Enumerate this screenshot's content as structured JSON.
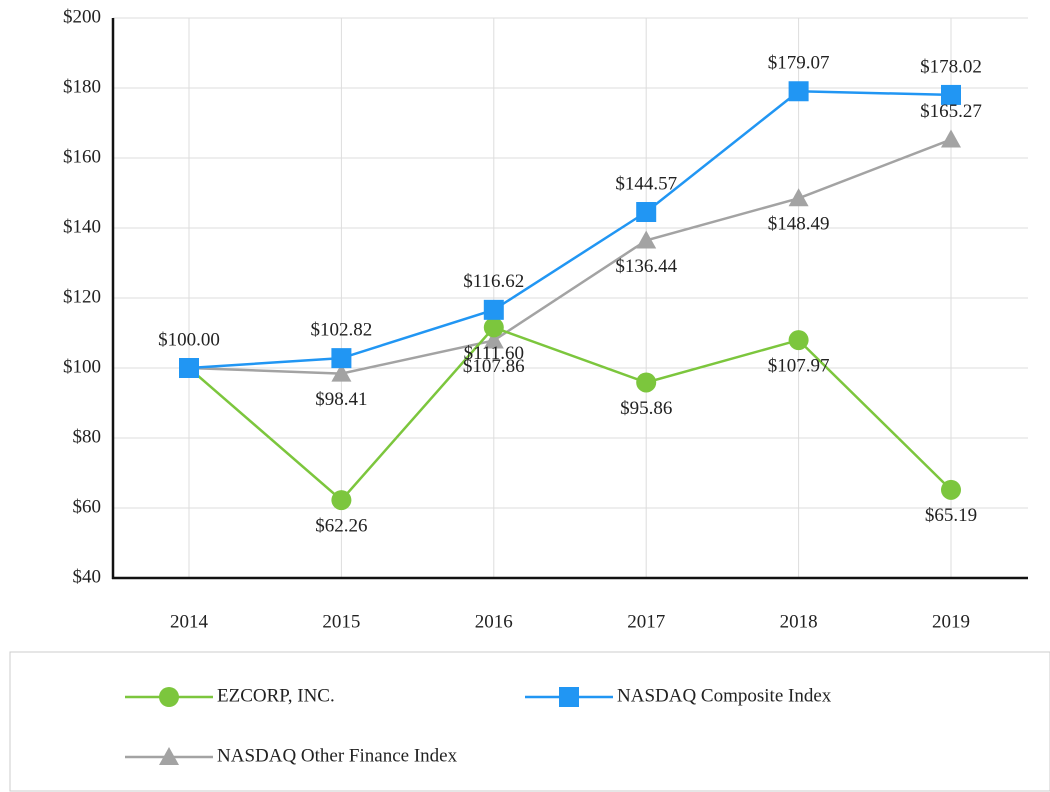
{
  "chart_data": {
    "type": "line",
    "categories": [
      "2014",
      "2015",
      "2016",
      "2017",
      "2018",
      "2019"
    ],
    "series": [
      {
        "name": "EZCORP, INC.",
        "color": "#7cc63d",
        "marker": "circle",
        "values": [
          100.0,
          62.26,
          111.6,
          95.86,
          107.97,
          65.19
        ],
        "value_labels": [
          null,
          "$62.26",
          "$111.60",
          "$95.86",
          "$107.97",
          "$65.19"
        ]
      },
      {
        "name": "NASDAQ Composite Index",
        "color": "#2196f3",
        "marker": "square",
        "values": [
          100.0,
          102.82,
          116.62,
          144.57,
          179.07,
          178.02
        ],
        "value_labels": [
          "$100.00",
          "$102.82",
          "$116.62",
          "$144.57",
          "$179.07",
          "$178.02"
        ]
      },
      {
        "name": "NASDAQ Other Finance Index",
        "color": "#a3a3a3",
        "marker": "triangle",
        "values": [
          100.0,
          98.41,
          107.86,
          136.44,
          148.49,
          165.27
        ],
        "value_labels": [
          null,
          "$98.41",
          "$107.86",
          "$136.44",
          "$148.49",
          "$165.27"
        ]
      }
    ],
    "ylim": [
      40,
      200
    ],
    "yticks": [
      {
        "value": 40,
        "label": "$40"
      },
      {
        "value": 60,
        "label": "$60"
      },
      {
        "value": 80,
        "label": "$80"
      },
      {
        "value": 100,
        "label": "$100"
      },
      {
        "value": 120,
        "label": "$120"
      },
      {
        "value": 140,
        "label": "$140"
      },
      {
        "value": 160,
        "label": "$160"
      },
      {
        "value": 180,
        "label": "$180"
      },
      {
        "value": 200,
        "label": "$200"
      }
    ],
    "grid": true
  }
}
